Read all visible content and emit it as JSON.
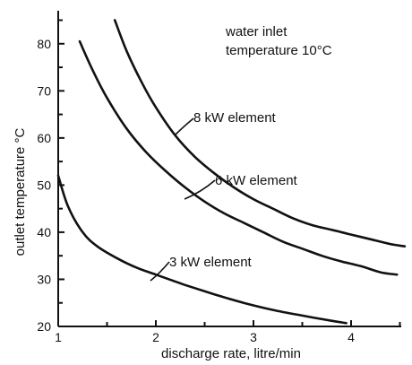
{
  "chart_data": {
    "type": "line",
    "title": "",
    "xlabel": "discharge rate, litre/min",
    "ylabel": "outlet temperature °C",
    "xlim": [
      1,
      4.5
    ],
    "ylim": [
      20,
      87
    ],
    "x_ticks": [
      1,
      2,
      3,
      4
    ],
    "x_tick_labels": [
      "1",
      "2",
      "3",
      "4"
    ],
    "y_ticks": [
      20,
      30,
      40,
      50,
      60,
      70,
      80
    ],
    "y_tick_labels": [
      "20",
      "30",
      "40",
      "50",
      "60",
      "70",
      "80"
    ],
    "annotation": [
      "water inlet",
      "temperature 10°C"
    ],
    "grid": false,
    "legend": "none",
    "series": [
      {
        "name": "8 kW element",
        "x": [
          1.58,
          1.7,
          1.85,
          2.0,
          2.2,
          2.4,
          2.6,
          2.8,
          3.0,
          3.2,
          3.4,
          3.6,
          3.8,
          4.0,
          4.2,
          4.4,
          4.55
        ],
        "y": [
          85,
          78.5,
          72,
          66.5,
          60.5,
          56,
          52.5,
          49.5,
          47,
          45,
          43,
          41.5,
          40.5,
          39.5,
          38.5,
          37.5,
          37
        ]
      },
      {
        "name": "6 kW element",
        "x": [
          1.22,
          1.35,
          1.5,
          1.7,
          1.9,
          2.1,
          2.3,
          2.5,
          2.7,
          2.9,
          3.1,
          3.3,
          3.5,
          3.7,
          3.9,
          4.1,
          4.3,
          4.47
        ],
        "y": [
          80.5,
          74.5,
          68.5,
          62,
          57,
          53,
          49.5,
          46.5,
          44,
          42,
          40,
          38,
          36.5,
          35,
          33.8,
          32.8,
          31.5,
          31
        ]
      },
      {
        "name": "3 kW element",
        "x": [
          1.0,
          1.1,
          1.25,
          1.4,
          1.6,
          1.8,
          2.0,
          2.3,
          2.6,
          2.9,
          3.2,
          3.5,
          3.8,
          3.95
        ],
        "y": [
          52,
          45.5,
          40,
          37,
          34.5,
          32.5,
          31,
          28.8,
          26.8,
          25,
          23.5,
          22.3,
          21.2,
          20.7
        ]
      }
    ]
  }
}
